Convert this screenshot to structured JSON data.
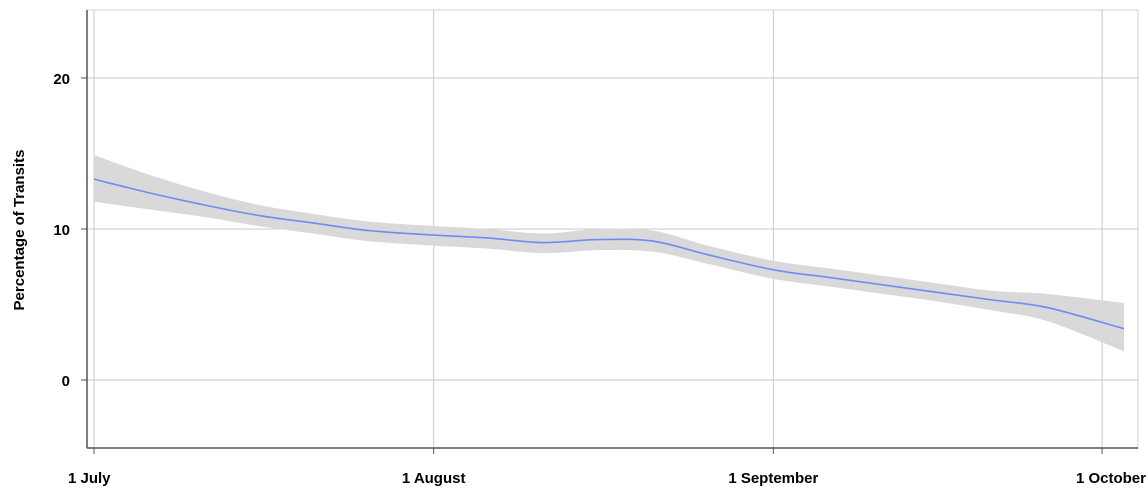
{
  "chart_data": {
    "type": "line",
    "title": "",
    "xlabel": "",
    "ylabel": "Percentage of Transits",
    "x_ticks": [
      {
        "date": "2023-07-01",
        "label": "1 July"
      },
      {
        "date": "2023-08-01",
        "label": "1 August"
      },
      {
        "date": "2023-09-01",
        "label": "1 September"
      },
      {
        "date": "2023-10-01",
        "label": "1 October"
      }
    ],
    "y_ticks": [
      0,
      10,
      20
    ],
    "xlim": [
      "2023-07-01",
      "2023-10-03"
    ],
    "ylim": [
      -4.5,
      24.5
    ],
    "grid": true,
    "legend": "none",
    "series": [
      {
        "style": "smoothed line with confidence band",
        "color": "#6d8cf0",
        "band_color": "#d9d9d9",
        "points": [
          {
            "x": "2023-07-01",
            "y": 13.3,
            "lower": 11.8,
            "upper": 14.9
          },
          {
            "x": "2023-07-06",
            "y": 12.4,
            "lower": 11.3,
            "upper": 13.6
          },
          {
            "x": "2023-07-11",
            "y": 11.6,
            "lower": 10.8,
            "upper": 12.5
          },
          {
            "x": "2023-07-16",
            "y": 10.9,
            "lower": 10.2,
            "upper": 11.6
          },
          {
            "x": "2023-07-21",
            "y": 10.4,
            "lower": 9.7,
            "upper": 11.0
          },
          {
            "x": "2023-07-26",
            "y": 9.9,
            "lower": 9.2,
            "upper": 10.5
          },
          {
            "x": "2023-08-01",
            "y": 9.6,
            "lower": 8.9,
            "upper": 10.2
          },
          {
            "x": "2023-08-06",
            "y": 9.4,
            "lower": 8.7,
            "upper": 10.0
          },
          {
            "x": "2023-08-11",
            "y": 9.1,
            "lower": 8.4,
            "upper": 9.7
          },
          {
            "x": "2023-08-16",
            "y": 9.3,
            "lower": 8.6,
            "upper": 10.0
          },
          {
            "x": "2023-08-21",
            "y": 9.2,
            "lower": 8.5,
            "upper": 9.9
          },
          {
            "x": "2023-08-26",
            "y": 8.3,
            "lower": 7.7,
            "upper": 8.9
          },
          {
            "x": "2023-09-01",
            "y": 7.3,
            "lower": 6.7,
            "upper": 7.9
          },
          {
            "x": "2023-09-06",
            "y": 6.8,
            "lower": 6.2,
            "upper": 7.4
          },
          {
            "x": "2023-09-11",
            "y": 6.3,
            "lower": 5.7,
            "upper": 6.9
          },
          {
            "x": "2023-09-16",
            "y": 5.8,
            "lower": 5.2,
            "upper": 6.4
          },
          {
            "x": "2023-09-21",
            "y": 5.3,
            "lower": 4.6,
            "upper": 5.9
          },
          {
            "x": "2023-09-26",
            "y": 4.8,
            "lower": 3.9,
            "upper": 5.7
          },
          {
            "x": "2023-10-03",
            "y": 3.4,
            "lower": 1.9,
            "upper": 5.1
          }
        ]
      }
    ]
  }
}
